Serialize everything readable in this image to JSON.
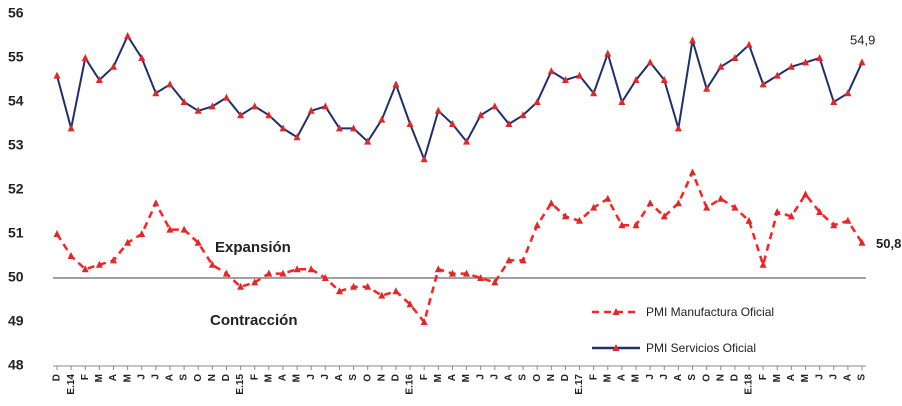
{
  "chart_data": {
    "type": "line",
    "categories": [
      "D",
      "E.14",
      "F",
      "M",
      "A",
      "M",
      "J",
      "J",
      "A",
      "S",
      "O",
      "N",
      "D",
      "E.15",
      "F",
      "M",
      "A",
      "M",
      "J",
      "J",
      "A",
      "S",
      "O",
      "N",
      "D",
      "E.16",
      "F",
      "M",
      "A",
      "M",
      "J",
      "J",
      "A",
      "S",
      "O",
      "N",
      "D",
      "E.17",
      "F",
      "M",
      "A",
      "M",
      "J",
      "J",
      "A",
      "S",
      "O",
      "N",
      "D",
      "E.18",
      "F",
      "M",
      "A",
      "M",
      "J",
      "J",
      "A",
      "S"
    ],
    "series": [
      {
        "name": "PMI Manufactura Oficial",
        "color": "#ff2020",
        "dash": true,
        "values": [
          51.0,
          50.5,
          50.2,
          50.3,
          50.4,
          50.8,
          51.0,
          51.7,
          51.1,
          51.1,
          50.8,
          50.3,
          50.1,
          49.8,
          49.9,
          50.1,
          50.1,
          50.2,
          50.2,
          50.0,
          49.7,
          49.8,
          49.8,
          49.6,
          49.7,
          49.4,
          49.0,
          50.2,
          50.1,
          50.1,
          50.0,
          49.9,
          50.4,
          50.4,
          51.2,
          51.7,
          51.4,
          51.3,
          51.6,
          51.8,
          51.2,
          51.2,
          51.7,
          51.4,
          51.7,
          52.4,
          51.6,
          51.8,
          51.6,
          51.3,
          50.3,
          51.5,
          51.4,
          51.9,
          51.5,
          51.2,
          51.3,
          50.8
        ],
        "value_labels": [
          null,
          null,
          null,
          null,
          null,
          null,
          null,
          null,
          null,
          null,
          null,
          null,
          null,
          null,
          null,
          null,
          null,
          null,
          null,
          null,
          null,
          null,
          null,
          null,
          null,
          null,
          null,
          null,
          null,
          null,
          null,
          null,
          null,
          null,
          null,
          null,
          null,
          null,
          null,
          null,
          null,
          null,
          null,
          null,
          null,
          null,
          null,
          null,
          null,
          null,
          null,
          null,
          null,
          null,
          null,
          null,
          null,
          "50,8"
        ]
      },
      {
        "name": "PMI Servicios Oficial",
        "color": "#1f2f6e",
        "dash": false,
        "values": [
          54.6,
          53.4,
          55.0,
          54.5,
          54.8,
          55.5,
          55.0,
          54.2,
          54.4,
          54.0,
          53.8,
          53.9,
          54.1,
          53.7,
          53.9,
          53.7,
          53.4,
          53.2,
          53.8,
          53.9,
          53.4,
          53.4,
          53.1,
          53.6,
          54.4,
          53.5,
          52.7,
          53.8,
          53.5,
          53.1,
          53.7,
          53.9,
          53.5,
          53.7,
          54.0,
          54.7,
          54.5,
          54.6,
          54.2,
          55.1,
          54.0,
          54.5,
          54.9,
          54.5,
          53.4,
          55.4,
          54.3,
          54.8,
          55.0,
          55.3,
          54.4,
          54.6,
          54.8,
          54.9,
          55.0,
          54.0,
          54.2,
          54.9
        ],
        "value_labels": [
          null,
          null,
          null,
          null,
          null,
          null,
          null,
          null,
          null,
          null,
          null,
          null,
          null,
          null,
          null,
          null,
          null,
          null,
          null,
          null,
          null,
          null,
          null,
          null,
          null,
          null,
          null,
          null,
          null,
          null,
          null,
          null,
          null,
          null,
          null,
          null,
          null,
          null,
          null,
          null,
          null,
          null,
          null,
          null,
          null,
          null,
          null,
          null,
          null,
          null,
          null,
          null,
          null,
          null,
          null,
          null,
          null,
          "54,9"
        ]
      }
    ],
    "ylim": [
      48,
      56
    ],
    "yticks": [
      48,
      49,
      50,
      51,
      52,
      53,
      54,
      55,
      56
    ],
    "reference_line": 50,
    "reference_color": "#a0a0a0",
    "annotations": [
      "Expansión",
      "Contracción"
    ]
  }
}
